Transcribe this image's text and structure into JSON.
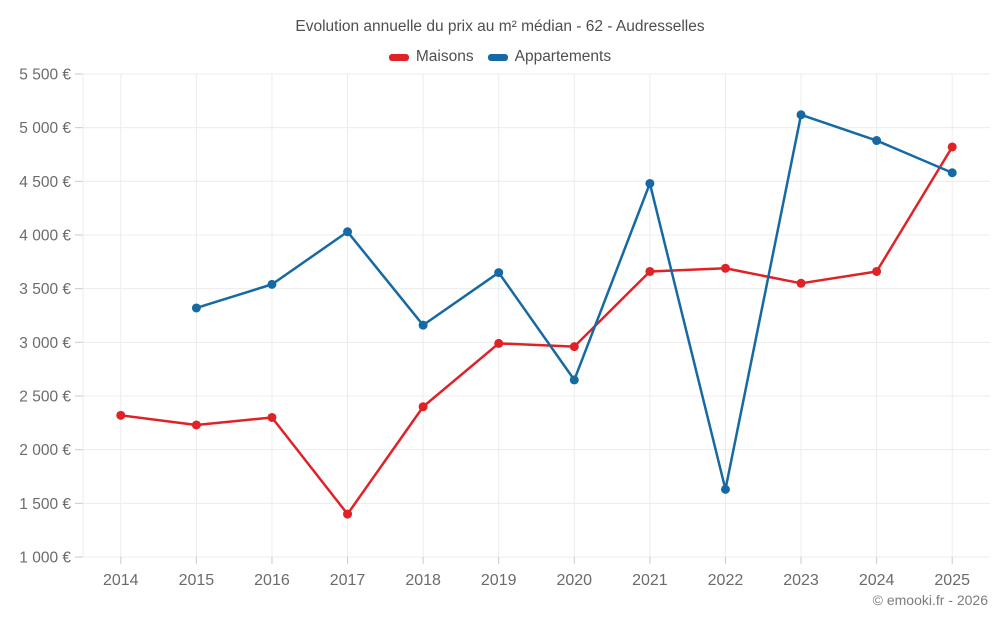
{
  "page": {
    "footer": "© emooki.fr - 2026"
  },
  "chart_data": {
    "type": "line",
    "title": "Evolution annuelle du prix au m² médian - 62 - Audresselles",
    "categories": [
      "2014",
      "2015",
      "2016",
      "2017",
      "2018",
      "2019",
      "2020",
      "2021",
      "2022",
      "2023",
      "2024",
      "2025"
    ],
    "series": [
      {
        "name": "Maisons",
        "color": "#e02227",
        "values": [
          2320,
          2230,
          2300,
          1400,
          2400,
          2990,
          2960,
          3660,
          3690,
          3550,
          3660,
          4820
        ]
      },
      {
        "name": "Appartements",
        "color": "#1669a3",
        "values": [
          null,
          3320,
          3540,
          4030,
          3160,
          3650,
          2650,
          4480,
          1630,
          5120,
          4880,
          4580
        ]
      }
    ],
    "y_ticks": [
      {
        "value": 1000,
        "label": "1 000 €"
      },
      {
        "value": 1500,
        "label": "1 500 €"
      },
      {
        "value": 2000,
        "label": "2 000 €"
      },
      {
        "value": 2500,
        "label": "2 500 €"
      },
      {
        "value": 3000,
        "label": "3 000 €"
      },
      {
        "value": 3500,
        "label": "3 500 €"
      },
      {
        "value": 4000,
        "label": "4 000 €"
      },
      {
        "value": 4500,
        "label": "4 500 €"
      },
      {
        "value": 5000,
        "label": "5 000 €"
      },
      {
        "value": 5500,
        "label": "5 500 €"
      }
    ],
    "ylim": [
      1000,
      5500
    ],
    "grid": true,
    "legend_position": "top",
    "line_width": 2.5,
    "marker_radius": 4.5,
    "grid_color": "#ececec",
    "tick_color": "#c9c9c9",
    "axis_label_color": "#6b6b6b",
    "title_color": "#4f4f4f",
    "footer_color": "#7d7d7d"
  }
}
